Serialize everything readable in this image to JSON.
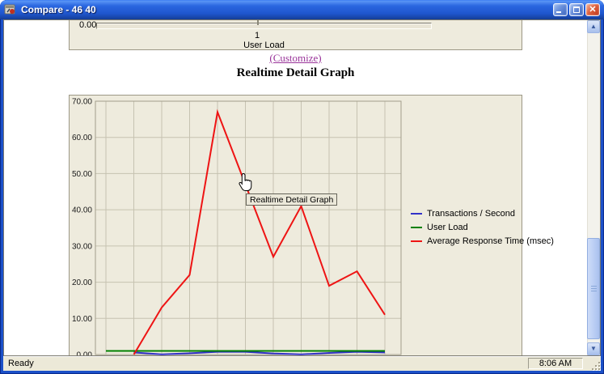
{
  "window": {
    "title": "Compare - 46 40",
    "titlebar_buttons": [
      "minimize",
      "maximize",
      "close"
    ]
  },
  "status_bar": {
    "ready_label": "Ready",
    "time": "8:06 AM"
  },
  "user_load_slider": {
    "value_label": "0.00",
    "tick_label": "1",
    "axis_title": "User Load"
  },
  "links": {
    "customize": "(Customize)"
  },
  "section_title": "Realtime Detail Graph",
  "tooltip": {
    "text": "Realtime Detail Graph"
  },
  "ui_colors": {
    "link": "#993399",
    "panel_background": "#eeebdd",
    "gridline": "#c6c2b1",
    "plot_border": "#a29e8c"
  },
  "chart_data": {
    "type": "line",
    "title": "Realtime Detail Graph",
    "xlabel": "",
    "ylabel": "",
    "ylim": [
      0,
      70
    ],
    "grid": true,
    "legend_position": "right-inside",
    "yticks": [
      0,
      10,
      20,
      30,
      40,
      50,
      60,
      70
    ],
    "ytick_labels": [
      "0.00",
      "10.00",
      "20.00",
      "30.00",
      "40.00",
      "50.00",
      "60.00",
      "70.00"
    ],
    "x_gridline_count": 11,
    "series": [
      {
        "name": "Transactions / Second",
        "color": "#3232c8",
        "x": [
          1,
          2,
          3,
          4,
          5,
          6,
          7,
          8,
          9,
          10
        ],
        "values": [
          0.6,
          0.05,
          0.35,
          0.75,
          0.75,
          0.3,
          0.05,
          0.45,
          0.75,
          0.6
        ]
      },
      {
        "name": "User Load",
        "color": "#008000",
        "x": [
          0,
          1,
          2,
          3,
          4,
          5,
          6,
          7,
          8,
          9,
          10
        ],
        "values": [
          1,
          1,
          1,
          1,
          1,
          1,
          1,
          1,
          1,
          1,
          1
        ]
      },
      {
        "name": "Average Response Time (msec)",
        "color": "#ee1414",
        "x": [
          1,
          2,
          3,
          4,
          5,
          6,
          7,
          8,
          9,
          10
        ],
        "values": [
          0,
          13,
          22,
          67,
          47,
          27,
          41,
          19,
          23,
          11
        ]
      }
    ]
  }
}
